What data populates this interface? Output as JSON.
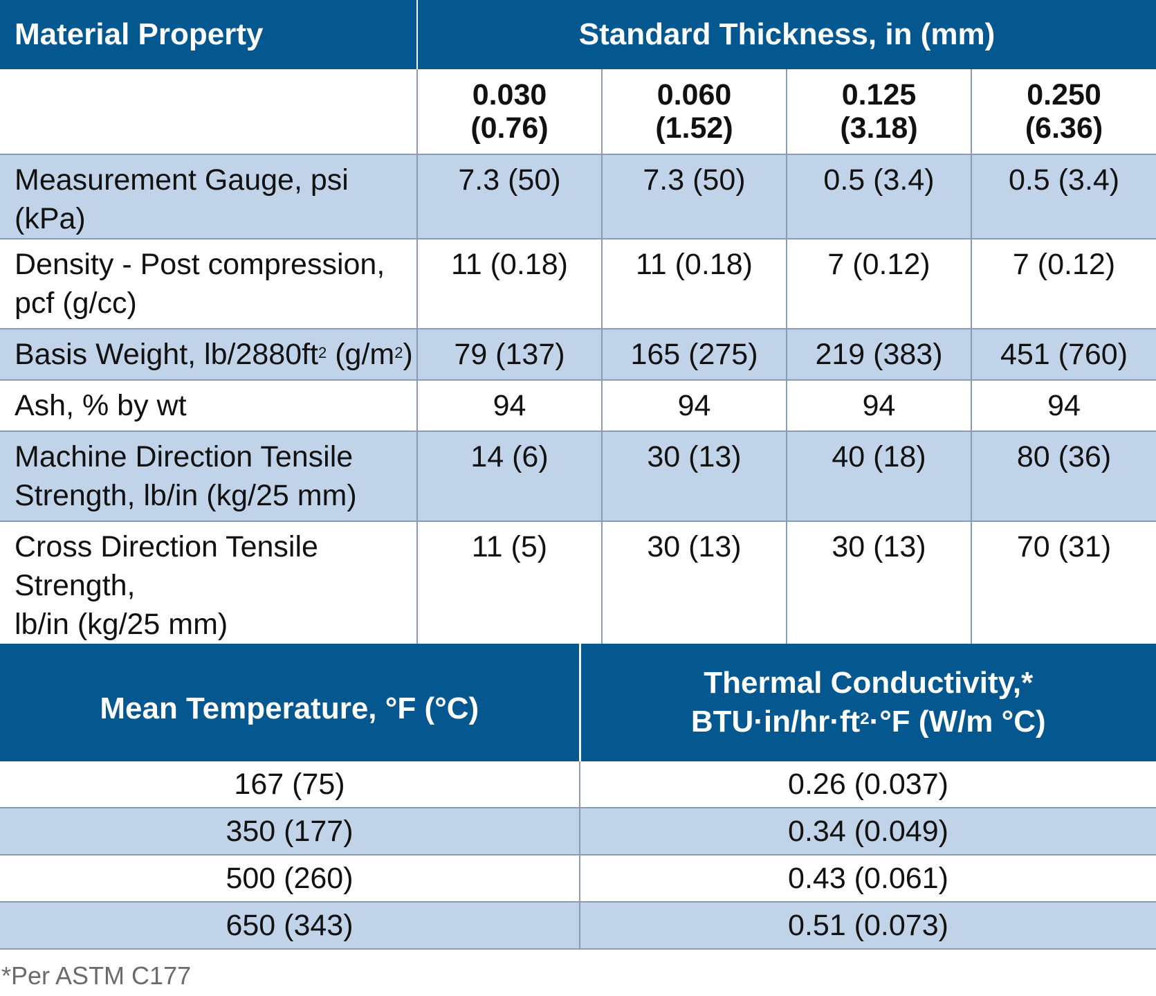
{
  "table1": {
    "header_property": "Material Property",
    "header_thickness": "Standard Thickness, in (mm)",
    "thicknesses": [
      {
        "in": "0.030",
        "mm": "(0.76)"
      },
      {
        "in": "0.060",
        "mm": "(1.52)"
      },
      {
        "in": "0.125",
        "mm": "(3.18)"
      },
      {
        "in": "0.250",
        "mm": "(6.36)"
      }
    ],
    "rows": [
      {
        "label": "Measurement Gauge, psi (kPa)",
        "values": [
          "7.3 (50)",
          "7.3 (50)",
          "0.5 (3.4)",
          "0.5 (3.4)"
        ]
      },
      {
        "label_line1": "Density - Post compression,",
        "label_line2": "pcf (g/cc)",
        "values": [
          "11 (0.18)",
          "11 (0.18)",
          "7 (0.12)",
          "7 (0.12)"
        ]
      },
      {
        "label_a": "Basis Weight, lb/2880ft",
        "label_sup1": "2",
        "label_b": " (g/m",
        "label_sup2": "2",
        "label_c": ")",
        "values": [
          "79 (137)",
          "165 (275)",
          "219 (383)",
          "451 (760)"
        ]
      },
      {
        "label": "Ash, % by wt",
        "values": [
          "94",
          "94",
          "94",
          "94"
        ]
      },
      {
        "label_line1": "Machine Direction Tensile",
        "label_line2": "Strength, lb/in (kg/25 mm)",
        "values": [
          "14 (6)",
          "30 (13)",
          "40 (18)",
          "80 (36)"
        ]
      },
      {
        "label_line1": "Cross Direction Tensile Strength,",
        "label_line2": "lb/in (kg/25 mm)",
        "values": [
          "11 (5)",
          "30 (13)",
          "30 (13)",
          "70 (31)"
        ]
      }
    ]
  },
  "table2": {
    "header_temp": "Mean Temperature, °F (°C)",
    "header_cond_line1": "Thermal Conductivity,*",
    "header_cond_line2a": "BTU·in/hr·ft",
    "header_cond_sup": "2",
    "header_cond_line2b": "·°F (W/m °C)",
    "rows": [
      {
        "temp": "167 (75)",
        "cond": "0.26 (0.037)"
      },
      {
        "temp": "350 (177)",
        "cond": "0.34 (0.049)"
      },
      {
        "temp": "500 (260)",
        "cond": "0.43 (0.061)"
      },
      {
        "temp": "650 (343)",
        "cond": "0.51 (0.073)"
      }
    ]
  },
  "footnote": "*Per ASTM C177"
}
